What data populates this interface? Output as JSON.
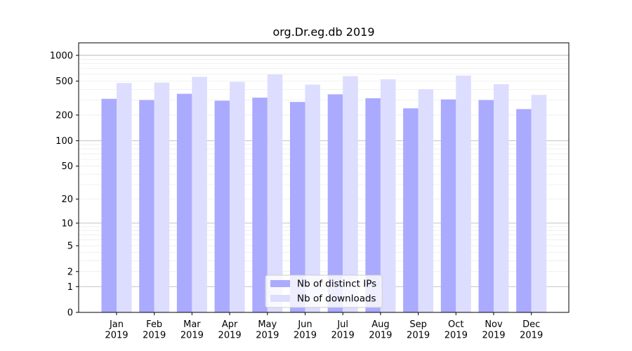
{
  "chart_data": {
    "type": "bar",
    "title": "org.Dr.eg.db 2019",
    "categories": [
      "Jan\n2019",
      "Feb\n2019",
      "Mar\n2019",
      "Apr\n2019",
      "May\n2019",
      "Jun\n2019",
      "Jul\n2019",
      "Aug\n2019",
      "Sep\n2019",
      "Oct\n2019",
      "Nov\n2019",
      "Dec\n2019"
    ],
    "series": [
      {
        "name": "Nb of distinct IPs",
        "color": "#aaaaff",
        "values": [
          310,
          300,
          355,
          295,
          320,
          285,
          350,
          315,
          240,
          305,
          300,
          235
        ]
      },
      {
        "name": "Nb of downloads",
        "color": "#ddddff",
        "values": [
          475,
          480,
          560,
          490,
          600,
          455,
          570,
          525,
          400,
          580,
          460,
          345
        ]
      }
    ],
    "y_scale": "log1p",
    "y_ticks": [
      0,
      1,
      2,
      5,
      10,
      20,
      50,
      100,
      200,
      500,
      1000
    ],
    "ylim": [
      0,
      1400
    ],
    "legend": {
      "position": "bottom-center"
    },
    "grid": true
  }
}
